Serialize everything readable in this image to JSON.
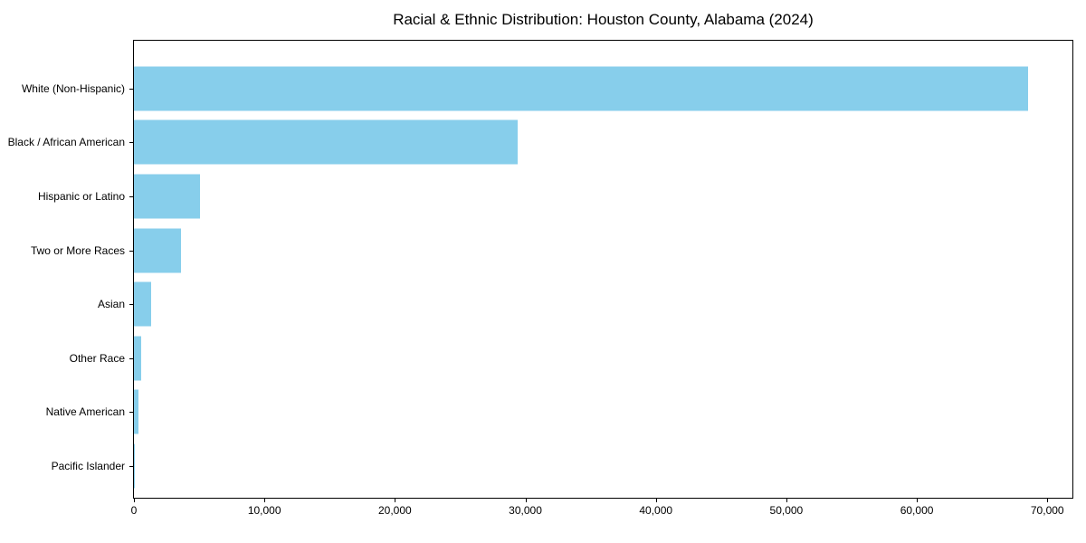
{
  "chart_data": {
    "type": "bar",
    "orientation": "horizontal",
    "title": "Racial & Ethnic Distribution: Houston County, Alabama (2024)",
    "categories": [
      "White (Non-Hispanic)",
      "Black / African American",
      "Hispanic or Latino",
      "Two or More Races",
      "Asian",
      "Other Race",
      "Native American",
      "Pacific Islander"
    ],
    "values": [
      68500,
      29400,
      5050,
      3580,
      1290,
      530,
      370,
      30
    ],
    "xlabel": "",
    "ylabel": "",
    "xlim": [
      0,
      71925
    ],
    "x_ticks": [
      {
        "value": 0,
        "label": "0"
      },
      {
        "value": 10000,
        "label": "10,000"
      },
      {
        "value": 20000,
        "label": "20,000"
      },
      {
        "value": 30000,
        "label": "30,000"
      },
      {
        "value": 40000,
        "label": "40,000"
      },
      {
        "value": 50000,
        "label": "50,000"
      },
      {
        "value": 60000,
        "label": "60,000"
      },
      {
        "value": 70000,
        "label": "70,000"
      }
    ],
    "grid": false,
    "legend": false,
    "colors": {
      "bar": "#87CEEB",
      "spine": "#000000",
      "background": "#ffffff",
      "text": "#000000"
    }
  }
}
